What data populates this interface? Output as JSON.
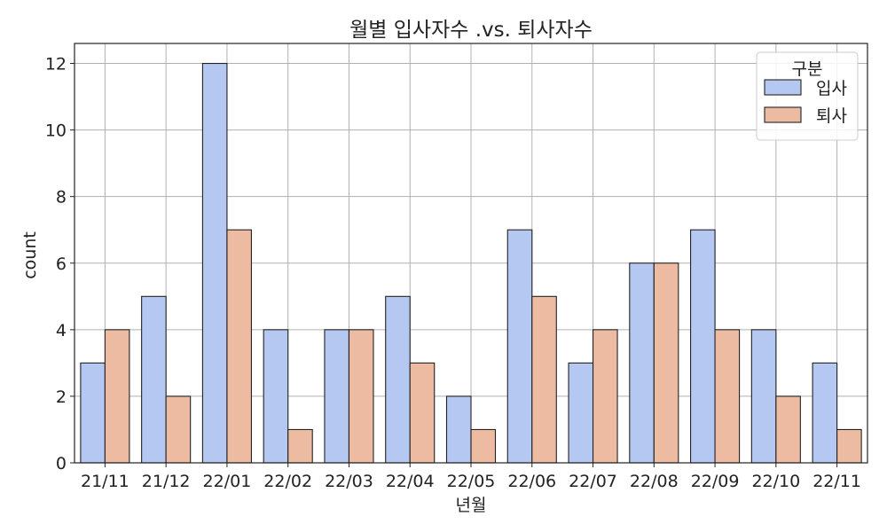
{
  "chart_data": {
    "type": "bar",
    "title": "월별 입사자수 .vs. 퇴사자수",
    "xlabel": "년월",
    "ylabel": "count",
    "categories": [
      "21/11",
      "21/12",
      "22/01",
      "22/02",
      "22/03",
      "22/04",
      "22/05",
      "22/06",
      "22/07",
      "22/08",
      "22/09",
      "22/10",
      "22/11"
    ],
    "series": [
      {
        "name": "입사",
        "color": "#b4c8f2",
        "values": [
          3,
          5,
          12,
          4,
          4,
          5,
          2,
          7,
          3,
          6,
          7,
          4,
          3
        ]
      },
      {
        "name": "퇴사",
        "color": "#ecbba2",
        "values": [
          4,
          2,
          7,
          1,
          4,
          3,
          1,
          5,
          4,
          6,
          4,
          2,
          1
        ]
      }
    ],
    "ylim": [
      0,
      12.6
    ],
    "yticks": [
      0,
      2,
      4,
      6,
      8,
      10,
      12
    ],
    "grid": true,
    "legend": {
      "title": "구분",
      "placement": "top-right"
    }
  }
}
